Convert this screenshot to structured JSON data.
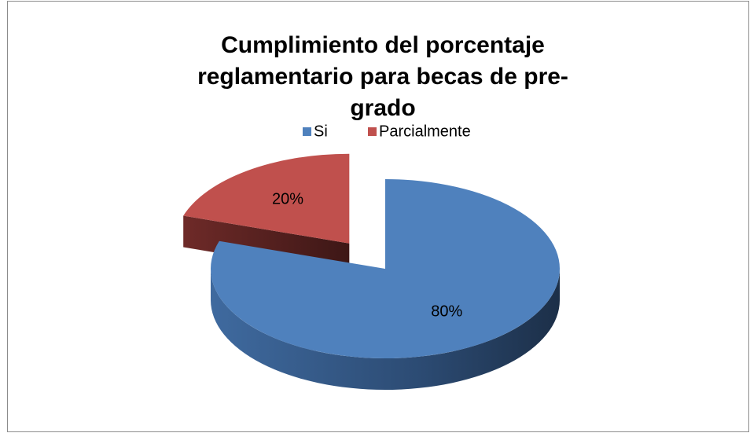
{
  "chart_data": {
    "type": "pie3d",
    "title": "Cumplimiento del porcentaje reglamentario para becas de pre-grado",
    "categories": [
      "Si",
      "Parcialmente"
    ],
    "values": [
      80,
      20
    ],
    "value_labels": [
      "80%",
      "20%"
    ],
    "colors": [
      "#4f81bd",
      "#c0504d"
    ],
    "legend": "top"
  }
}
